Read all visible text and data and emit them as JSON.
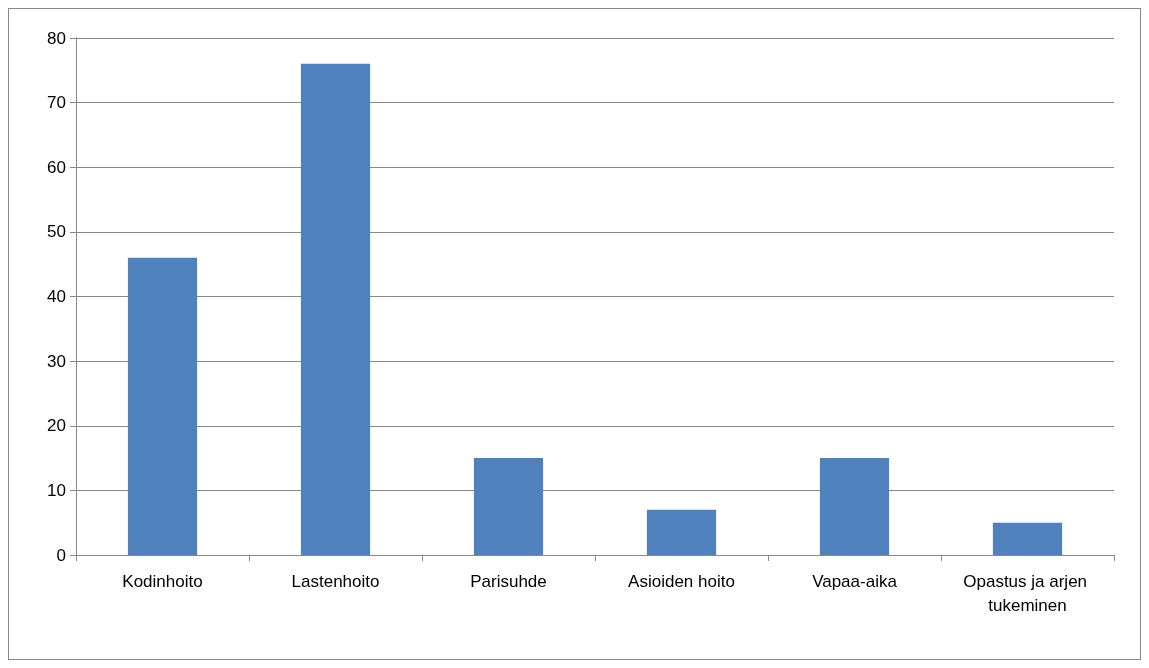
{
  "chart_data": {
    "type": "bar",
    "categories": [
      "Kodinhoito",
      "Lastenhoito",
      "Parisuhde",
      "Asioiden hoito",
      "Vapaa-aika",
      "Opastus ja arjen tukeminen"
    ],
    "values": [
      46,
      76,
      15,
      7,
      15,
      5
    ],
    "color": "#4f81bd",
    "ylim": [
      0,
      80
    ],
    "yticks": [
      0,
      10,
      20,
      30,
      40,
      50,
      60,
      70,
      80
    ],
    "grid": "y"
  }
}
